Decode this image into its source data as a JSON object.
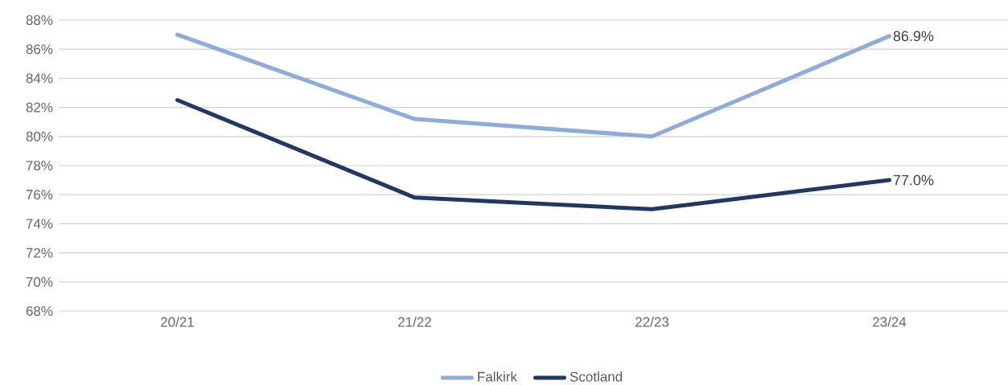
{
  "chart_data": {
    "type": "line",
    "categories": [
      "20/21",
      "21/22",
      "22/23",
      "23/24"
    ],
    "series": [
      {
        "name": "Falkirk",
        "color": "#8faadc",
        "values": [
          87.0,
          81.2,
          80.0,
          86.9
        ],
        "value_labels": [
          null,
          null,
          null,
          "86.9%"
        ]
      },
      {
        "name": "Scotland",
        "color": "#203864",
        "values": [
          82.5,
          75.8,
          75.0,
          77.0
        ],
        "value_labels": [
          null,
          null,
          null,
          "77.0%"
        ]
      }
    ],
    "ylim": [
      68,
      88
    ],
    "yticks": [
      {
        "value": 68,
        "label": "68%"
      },
      {
        "value": 70,
        "label": "70%"
      },
      {
        "value": 72,
        "label": "72%"
      },
      {
        "value": 74,
        "label": "74%"
      },
      {
        "value": 76,
        "label": "76%"
      },
      {
        "value": 78,
        "label": "78%"
      },
      {
        "value": 80,
        "label": "80%"
      },
      {
        "value": 82,
        "label": "82%"
      },
      {
        "value": 84,
        "label": "84%"
      },
      {
        "value": 86,
        "label": "86%"
      },
      {
        "value": 88,
        "label": "88%"
      }
    ],
    "grid": "y",
    "legend": "bottom",
    "marker": "none",
    "line_style": "solid"
  }
}
